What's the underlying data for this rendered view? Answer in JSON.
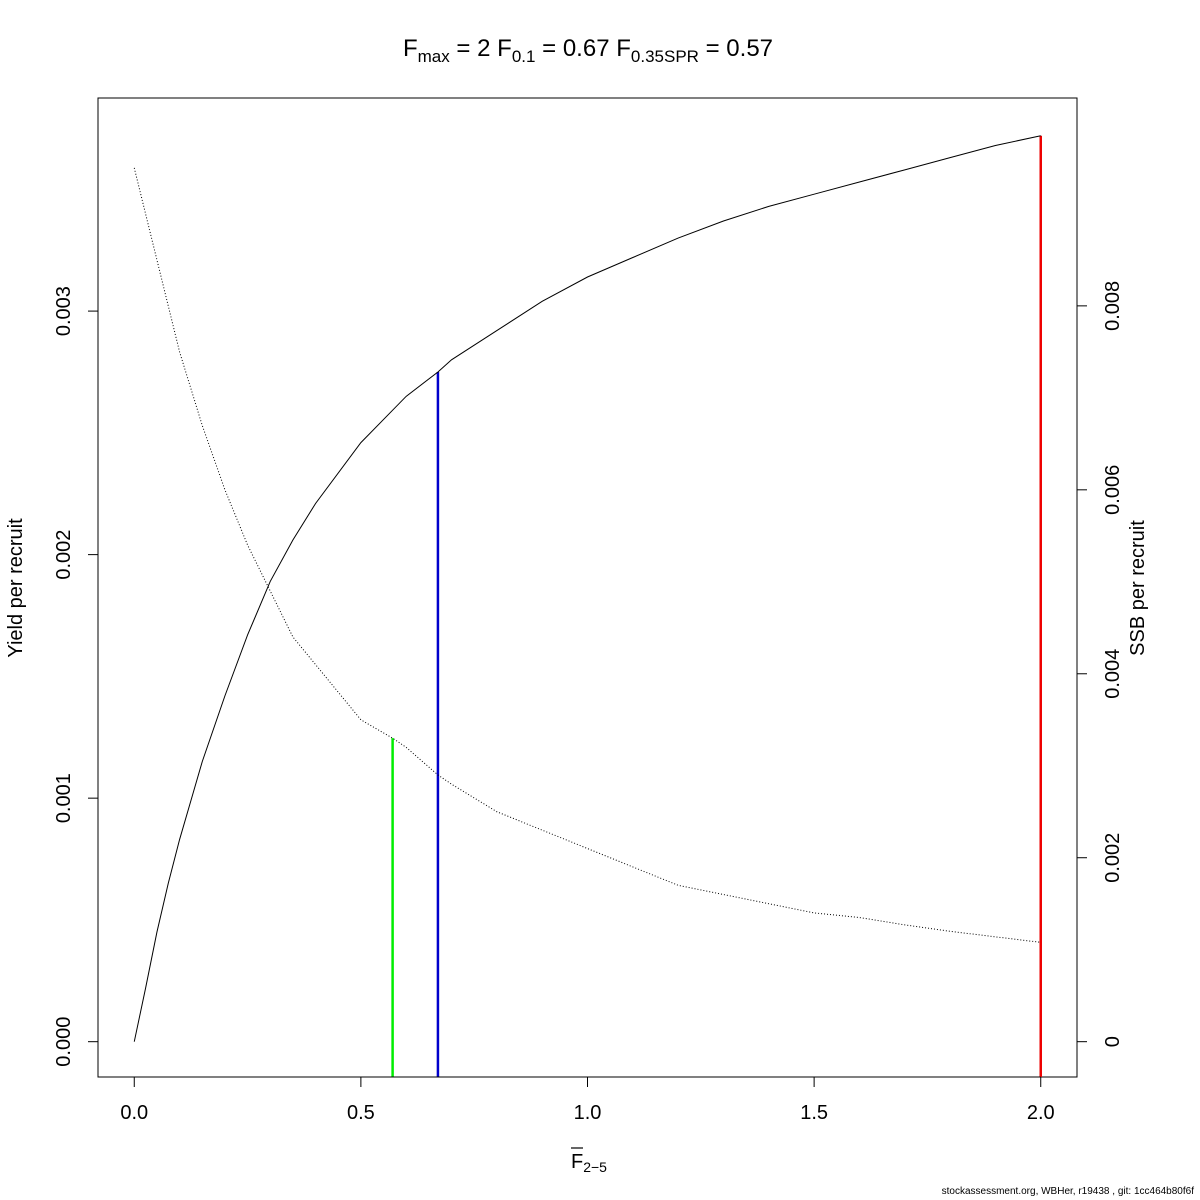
{
  "footer": "stockassessment.org, WBHer, r19438 , git: 1cc464b80f6f",
  "chart_data": {
    "type": "line",
    "title_parts": {
      "fmax_label": "F",
      "fmax_sub": "max",
      "fmax_value": "2",
      "f01_label": "F",
      "f01_sub": "0.1",
      "f01_value": "0.67",
      "fspr_label": "F",
      "fspr_sub": "0.35SPR",
      "fspr_value": "0.57"
    },
    "xlabel": "F",
    "xlabel_sub": "2−5",
    "ylabel_left": "Yield per recruit",
    "ylabel_right": "SSB per recruit",
    "xlim": [
      -0.08,
      2.08
    ],
    "ylim_left": [
      -0.000145,
      0.003875
    ],
    "ylim_right": [
      -0.000384,
      0.01026
    ],
    "grid": false,
    "x_ticks": [
      "0.0",
      "0.5",
      "1.0",
      "1.5",
      "2.0"
    ],
    "y_left_ticks": [
      "0.000",
      "0.001",
      "0.002",
      "0.003"
    ],
    "y_right_ticks": [
      "0",
      "0.002",
      "0.004",
      "0.006",
      "0.008"
    ],
    "series": [
      {
        "axis": "left",
        "color": "#000000",
        "dash": "solid",
        "x": [
          0,
          0.025,
          0.05,
          0.075,
          0.1,
          0.125,
          0.15,
          0.2,
          0.25,
          0.3,
          0.35,
          0.4,
          0.5,
          0.6,
          0.67,
          0.7,
          0.8,
          0.9,
          1.0,
          1.1,
          1.2,
          1.3,
          1.4,
          1.5,
          1.6,
          1.7,
          1.8,
          1.9,
          2.0
        ],
        "values": [
          0.0,
          0.00022,
          0.00045,
          0.00065,
          0.00083,
          0.00099,
          0.00115,
          0.00142,
          0.00167,
          0.00189,
          0.00206,
          0.00221,
          0.00246,
          0.00265,
          0.00275,
          0.0028,
          0.00292,
          0.00304,
          0.00314,
          0.00322,
          0.0033,
          0.00337,
          0.00343,
          0.00348,
          0.00353,
          0.00358,
          0.00363,
          0.00368,
          0.00372
        ]
      },
      {
        "axis": "right",
        "color": "#000000",
        "dash": "dotted",
        "x": [
          0,
          0.025,
          0.05,
          0.075,
          0.1,
          0.15,
          0.2,
          0.25,
          0.3,
          0.35,
          0.4,
          0.5,
          0.57,
          0.6,
          0.67,
          0.7,
          0.8,
          0.9,
          1.0,
          1.1,
          1.2,
          1.3,
          1.4,
          1.5,
          1.6,
          1.7,
          1.8,
          1.9,
          2.0
        ],
        "values": [
          0.0095,
          0.009,
          0.0085,
          0.008,
          0.0075,
          0.0067,
          0.006,
          0.0054,
          0.0049,
          0.0044,
          0.0041,
          0.0035,
          0.0033,
          0.0032,
          0.0029,
          0.0028,
          0.0025,
          0.0023,
          0.0021,
          0.0019,
          0.0017,
          0.0016,
          0.0015,
          0.0014,
          0.00135,
          0.00127,
          0.0012,
          0.00114,
          0.00108
        ]
      }
    ],
    "ref_lines": [
      {
        "name": "F0.35SPR",
        "x": 0.57,
        "color": "#00ee00",
        "axis": "right",
        "y": 0.0033
      },
      {
        "name": "F0.1",
        "x": 0.67,
        "color": "#0000cc",
        "axis": "left",
        "y": 0.00275
      },
      {
        "name": "Fmax",
        "x": 2.0,
        "color": "#ee0000",
        "axis": "left",
        "y": 0.00372
      }
    ]
  }
}
